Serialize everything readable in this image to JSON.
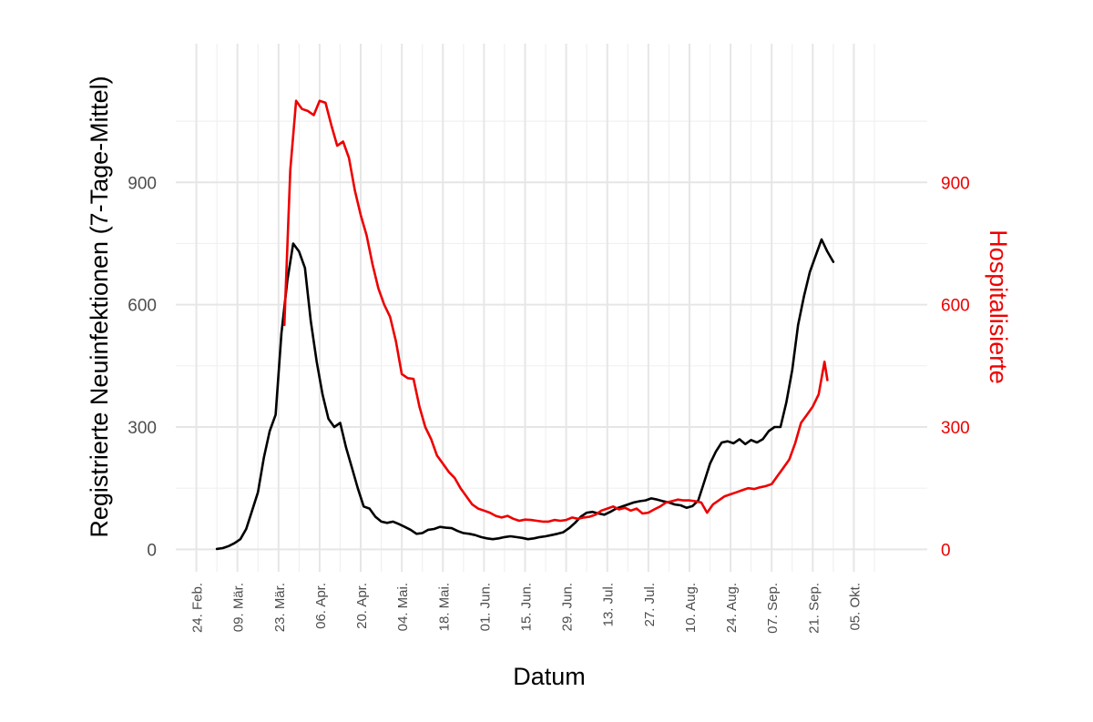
{
  "chart_data": {
    "type": "line",
    "title": "",
    "xlabel": "Datum",
    "ylabel_left": "Registrierte Neuinfektionen (7-Tage-Mittel)",
    "ylabel_right": "Hospitalisierte",
    "x_range_days": [
      -14,
      242
    ],
    "ylim_left": [
      -55,
      1240
    ],
    "ylim_right": [
      -55,
      1240
    ],
    "left_ticks": [
      0,
      300,
      600,
      900
    ],
    "right_ticks": [
      0,
      300,
      600,
      900
    ],
    "x_ticks": [
      {
        "day": -7,
        "label": "24. Feb."
      },
      {
        "day": 7,
        "label": "09. Mär."
      },
      {
        "day": 21,
        "label": "23. Mär."
      },
      {
        "day": 35,
        "label": "06. Apr."
      },
      {
        "day": 49,
        "label": "20. Apr."
      },
      {
        "day": 63,
        "label": "04. Mai."
      },
      {
        "day": 77,
        "label": "18. Mai."
      },
      {
        "day": 91,
        "label": "01. Jun."
      },
      {
        "day": 105,
        "label": "15. Jun."
      },
      {
        "day": 119,
        "label": "29. Jun."
      },
      {
        "day": 133,
        "label": "13. Jul."
      },
      {
        "day": 147,
        "label": "27. Jul."
      },
      {
        "day": 161,
        "label": "10. Aug."
      },
      {
        "day": 175,
        "label": "24. Aug."
      },
      {
        "day": 189,
        "label": "07. Sep."
      },
      {
        "day": 203,
        "label": "21. Sep."
      },
      {
        "day": 217,
        "label": "05. Okt."
      }
    ],
    "grid": true,
    "series": [
      {
        "name": "Registrierte Neuinfektionen (7-Tage-Mittel)",
        "color": "#000000",
        "axis": "left",
        "x": [
          0,
          2,
          4,
          6,
          8,
          10,
          12,
          14,
          16,
          18,
          20,
          22,
          24,
          26,
          28,
          30,
          32,
          34,
          36,
          38,
          40,
          42,
          44,
          46,
          48,
          50,
          52,
          54,
          56,
          58,
          60,
          62,
          64,
          66,
          68,
          70,
          72,
          74,
          76,
          78,
          80,
          82,
          84,
          86,
          88,
          90,
          92,
          94,
          96,
          98,
          100,
          102,
          104,
          106,
          108,
          110,
          112,
          114,
          116,
          118,
          120,
          122,
          124,
          126,
          128,
          130,
          132,
          134,
          136,
          138,
          140,
          142,
          144,
          146,
          148,
          150,
          152,
          154,
          156,
          158,
          160,
          162,
          164,
          166,
          168,
          170,
          172,
          174,
          176,
          178,
          180,
          182,
          184,
          186,
          188,
          190,
          192,
          194,
          196,
          198,
          200,
          202,
          204,
          206,
          208,
          210
        ],
        "y": [
          1,
          3,
          8,
          15,
          25,
          50,
          95,
          140,
          225,
          290,
          330,
          530,
          660,
          750,
          730,
          690,
          560,
          460,
          380,
          320,
          300,
          310,
          250,
          200,
          150,
          105,
          100,
          80,
          68,
          65,
          68,
          62,
          55,
          48,
          38,
          40,
          48,
          50,
          55,
          53,
          52,
          45,
          40,
          38,
          35,
          30,
          27,
          25,
          27,
          30,
          32,
          30,
          28,
          25,
          27,
          30,
          32,
          35,
          38,
          42,
          52,
          65,
          80,
          90,
          92,
          88,
          85,
          92,
          100,
          105,
          110,
          115,
          118,
          120,
          125,
          122,
          118,
          115,
          110,
          108,
          102,
          106,
          120,
          165,
          210,
          240,
          262,
          265,
          260,
          270,
          258,
          268,
          262,
          270,
          290,
          300,
          300,
          360,
          440,
          550,
          620,
          680,
          720,
          760,
          730,
          705
        ]
      },
      {
        "name": "Hospitalisierte",
        "color": "#ee0000",
        "axis": "right",
        "x": [
          23,
          25,
          27,
          29,
          31,
          33,
          35,
          37,
          39,
          41,
          43,
          45,
          47,
          49,
          51,
          53,
          55,
          57,
          59,
          61,
          63,
          65,
          67,
          69,
          71,
          73,
          75,
          77,
          79,
          81,
          83,
          85,
          87,
          89,
          91,
          93,
          95,
          97,
          99,
          101,
          103,
          105,
          107,
          109,
          111,
          113,
          115,
          117,
          119,
          121,
          123,
          125,
          127,
          129,
          131,
          133,
          135,
          137,
          139,
          141,
          143,
          145,
          147,
          149,
          151,
          153,
          155,
          157,
          159,
          161,
          163,
          165,
          167,
          169,
          171,
          173,
          175,
          177,
          179,
          181,
          183,
          185,
          187,
          189,
          191,
          193,
          195,
          197,
          199,
          201,
          203,
          205,
          207,
          208
        ],
        "y": [
          550,
          930,
          1100,
          1080,
          1075,
          1065,
          1100,
          1095,
          1040,
          990,
          1000,
          960,
          880,
          820,
          770,
          700,
          640,
          600,
          570,
          510,
          430,
          420,
          418,
          350,
          300,
          270,
          230,
          210,
          190,
          175,
          150,
          130,
          110,
          100,
          95,
          90,
          82,
          78,
          82,
          75,
          70,
          73,
          72,
          70,
          68,
          68,
          72,
          70,
          72,
          78,
          75,
          78,
          80,
          85,
          95,
          100,
          105,
          98,
          102,
          95,
          100,
          88,
          90,
          98,
          105,
          115,
          118,
          122,
          120,
          120,
          118,
          115,
          90,
          110,
          120,
          130,
          135,
          140,
          145,
          150,
          148,
          152,
          155,
          160,
          180,
          200,
          220,
          260,
          310,
          330,
          350,
          380,
          460,
          415
        ]
      }
    ]
  }
}
